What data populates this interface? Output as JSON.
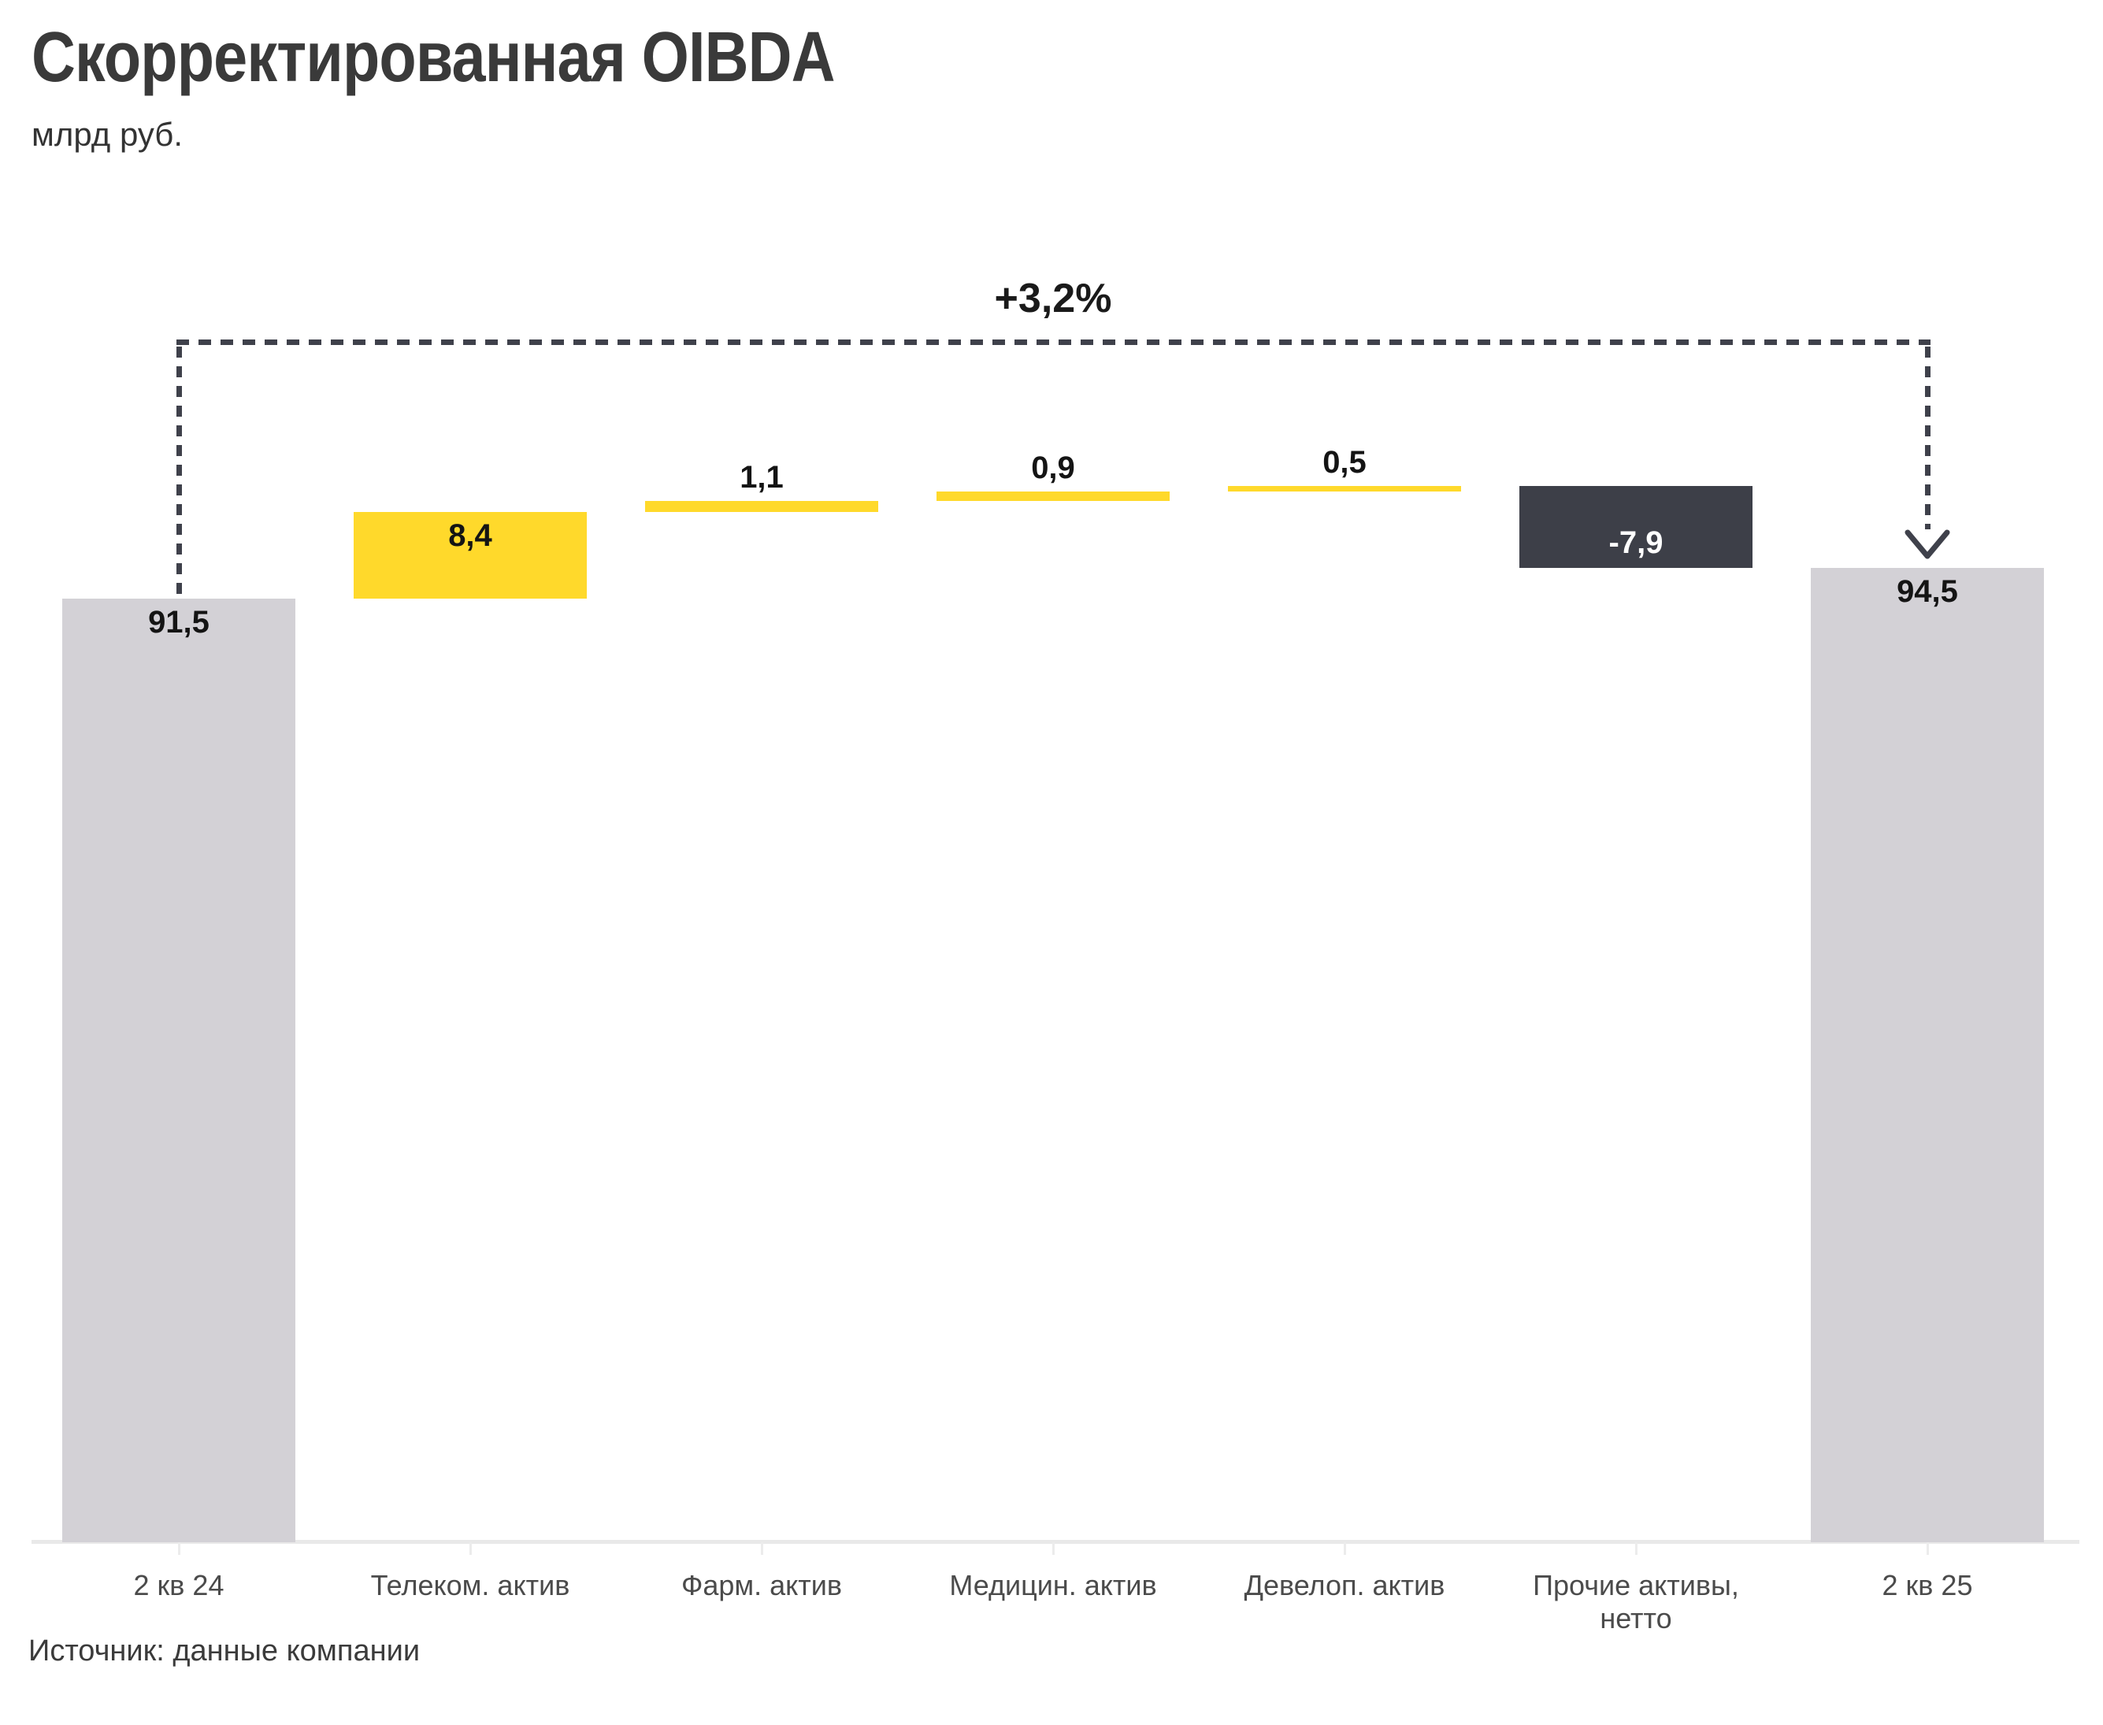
{
  "title": "Скорректированная OIBDA",
  "subtitle": "млрд руб.",
  "source": "Источник: данные компании",
  "annotation": {
    "label": "+3,2%"
  },
  "colors": {
    "total_bar": "#d3d1d6",
    "increase_bar": "#ffd92b",
    "decrease_bar": "#3d3f48",
    "annotation_ink": "#3f414b",
    "axis_line": "#e9e9e9",
    "axis_text": "#4b4b4b",
    "value_text": "#141414",
    "value_text_on_dark": "#ffffff"
  },
  "chart_data": {
    "type": "bar",
    "variant": "waterfall",
    "title": "Скорректированная OIBDA",
    "ylabel": "млрд руб.",
    "categories": [
      "2 кв 24",
      "Телеком. актив",
      "Фарм. актив",
      "Медицин. актив",
      "Девелоп. актив",
      "Прочие активы,\nнетто",
      "2 кв 25"
    ],
    "values": [
      91.5,
      8.4,
      1.1,
      0.9,
      0.5,
      -7.9,
      94.5
    ],
    "display_values": [
      "91,5",
      "8,4",
      "1,1",
      "0,9",
      "0,5",
      "-7,9",
      "94,5"
    ],
    "roles": [
      "total",
      "increase",
      "increase",
      "increase",
      "increase",
      "decrease",
      "total"
    ],
    "cumulative": [
      91.5,
      99.9,
      101.0,
      101.9,
      102.4,
      94.5,
      94.5
    ],
    "annotation": {
      "label": "+3,2%",
      "from_category": "2 кв 24",
      "to_category": "2 кв 25"
    },
    "ylim": [
      0,
      116.5
    ],
    "grid": false,
    "legend": false
  }
}
